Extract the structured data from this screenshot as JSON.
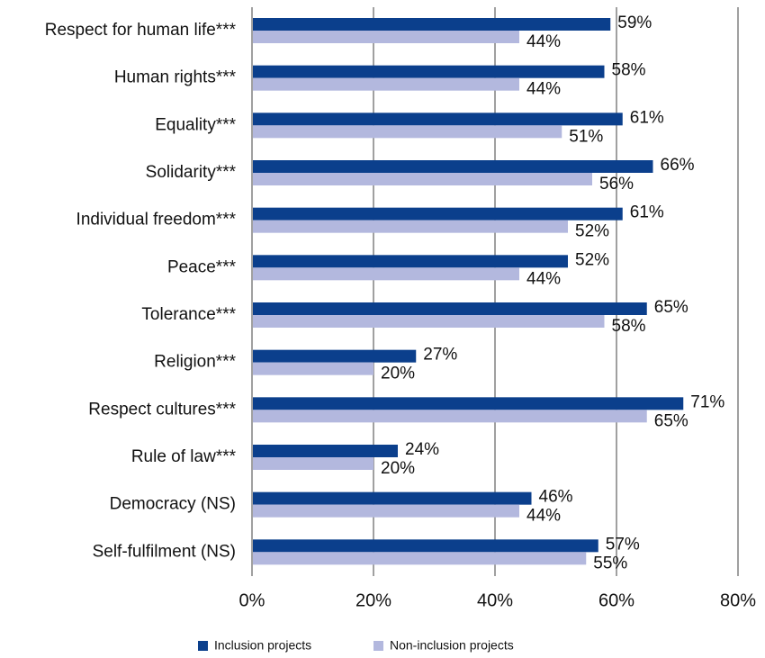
{
  "chart_data": {
    "type": "hbar",
    "categories": [
      "Respect for human life***",
      "Human rights***",
      "Equality***",
      "Solidarity***",
      "Individual freedom***",
      "Peace***",
      "Tolerance***",
      "Religion***",
      "Respect cultures***",
      "Rule of law***",
      "Democracy (NS)",
      "Self-fulfilment (NS)"
    ],
    "series": [
      {
        "name": "Inclusion projects",
        "color": "#0b3f8c",
        "values": [
          59,
          58,
          61,
          66,
          61,
          52,
          65,
          27,
          71,
          24,
          46,
          57
        ],
        "value_labels": [
          "59%",
          "58%",
          "61%",
          "66%",
          "61%",
          "52%",
          "65%",
          "27%",
          "71%",
          "24%",
          "46%",
          "57%"
        ]
      },
      {
        "name": "Non-inclusion projects",
        "color": "#b3b8de",
        "values": [
          44,
          44,
          51,
          56,
          52,
          44,
          58,
          20,
          65,
          20,
          44,
          55
        ],
        "value_labels": [
          "44%",
          "44%",
          "51%",
          "56%",
          "52%",
          "44%",
          "58%",
          "20%",
          "65%",
          "20%",
          "44%",
          "55%"
        ]
      }
    ],
    "xlim": [
      0,
      80
    ],
    "xticks": [
      {
        "value": 0,
        "label": "0%"
      },
      {
        "value": 20,
        "label": "20%"
      },
      {
        "value": 40,
        "label": "40%"
      },
      {
        "value": 60,
        "label": "60%"
      },
      {
        "value": 80,
        "label": "80%"
      }
    ],
    "grid": true
  }
}
